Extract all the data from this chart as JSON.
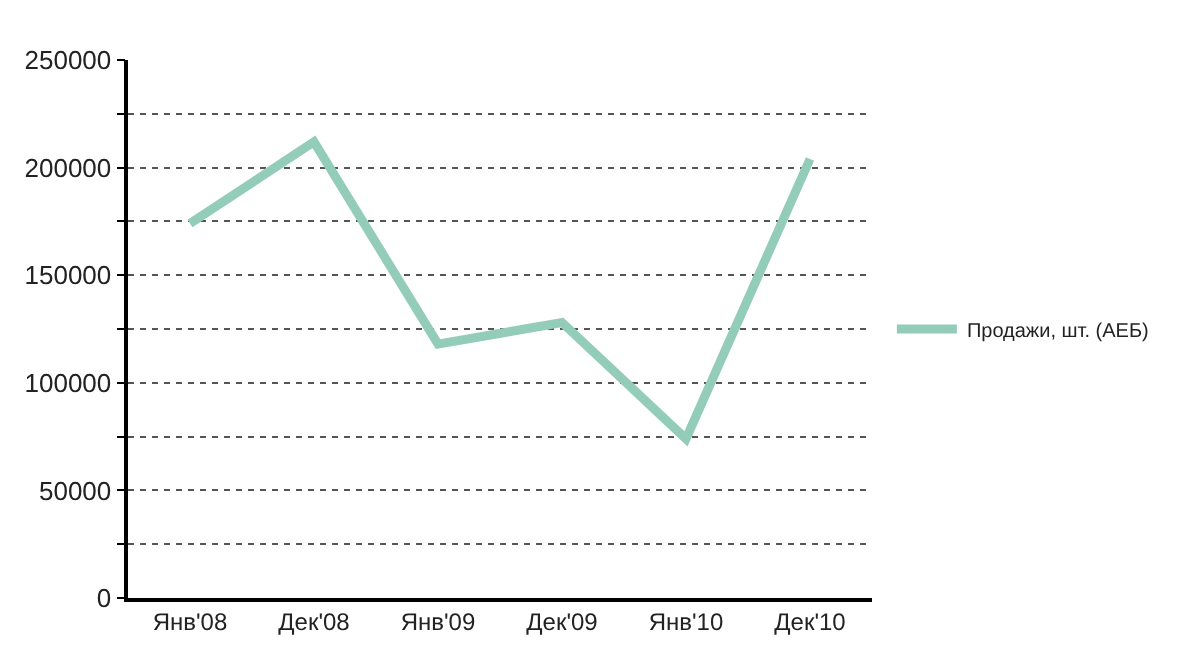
{
  "chart_data": {
    "type": "line",
    "categories": [
      "Янв'08",
      "Дек'08",
      "Янв'09",
      "Дек'09",
      "Янв'10",
      "Дек'10"
    ],
    "series": [
      {
        "name": "Продажи, шт. (АЕБ)",
        "color": "#93cdb9",
        "values": [
          174000,
          212000,
          118000,
          128000,
          74000,
          204000
        ]
      }
    ],
    "ylim": [
      0,
      250000
    ],
    "yticks": [
      0,
      {
        "value": 25000,
        "label": null
      },
      50000,
      {
        "value": 75000,
        "label": null
      },
      100000,
      {
        "value": 125000,
        "label": null
      },
      150000,
      {
        "value": 175000,
        "label": null
      },
      200000,
      {
        "value": 225000,
        "label": null
      },
      250000
    ],
    "grid": "y",
    "legend": "right",
    "marker": "none",
    "line_style": "solid"
  }
}
